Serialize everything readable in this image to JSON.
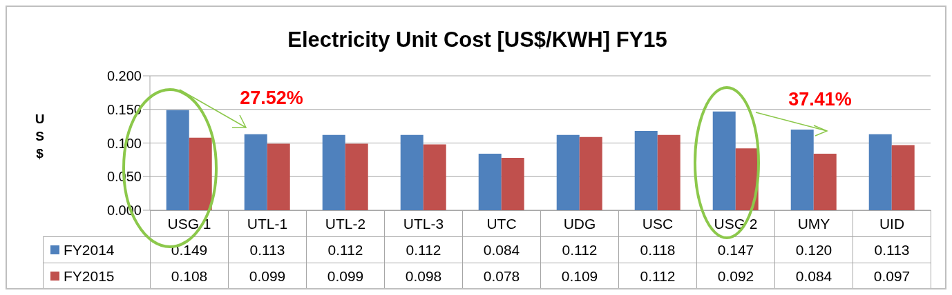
{
  "chart_data": {
    "type": "bar",
    "title": "Electricity Unit Cost [US$/KWH] FY15",
    "ylabel": "US$",
    "categories": [
      "USG 1",
      "UTL-1",
      "UTL-2",
      "UTL-3",
      "UTC",
      "UDG",
      "USC",
      "USG 2",
      "UMY",
      "UID"
    ],
    "series": [
      {
        "name": "FY2014",
        "color": "#4f81bd",
        "values": [
          0.149,
          0.113,
          0.112,
          0.112,
          0.084,
          0.112,
          0.118,
          0.147,
          0.12,
          0.113
        ],
        "value_labels": [
          "0.149",
          "0.113",
          "0.112",
          "0.112",
          "0.084",
          "0.112",
          "0.118",
          "0.147",
          "0.120",
          "0.113"
        ]
      },
      {
        "name": "FY2015",
        "color": "#c0504d",
        "values": [
          0.108,
          0.099,
          0.099,
          0.098,
          0.078,
          0.109,
          0.112,
          0.092,
          0.084,
          0.097
        ],
        "value_labels": [
          "0.108",
          "0.099",
          "0.099",
          "0.098",
          "0.078",
          "0.109",
          "0.112",
          "0.092",
          "0.084",
          "0.097"
        ]
      }
    ],
    "ylim": [
      0,
      0.2
    ],
    "yticks": [
      {
        "value": 0,
        "label": "0.000"
      },
      {
        "value": 0.05,
        "label": "0.050"
      },
      {
        "value": 0.1,
        "label": "0.100"
      },
      {
        "value": 0.15,
        "label": "0.150"
      },
      {
        "value": 0.2,
        "label": "0.200"
      }
    ],
    "grid": "y",
    "legend": "bottom",
    "annotations": [
      "27.52%",
      "37.41%"
    ]
  }
}
